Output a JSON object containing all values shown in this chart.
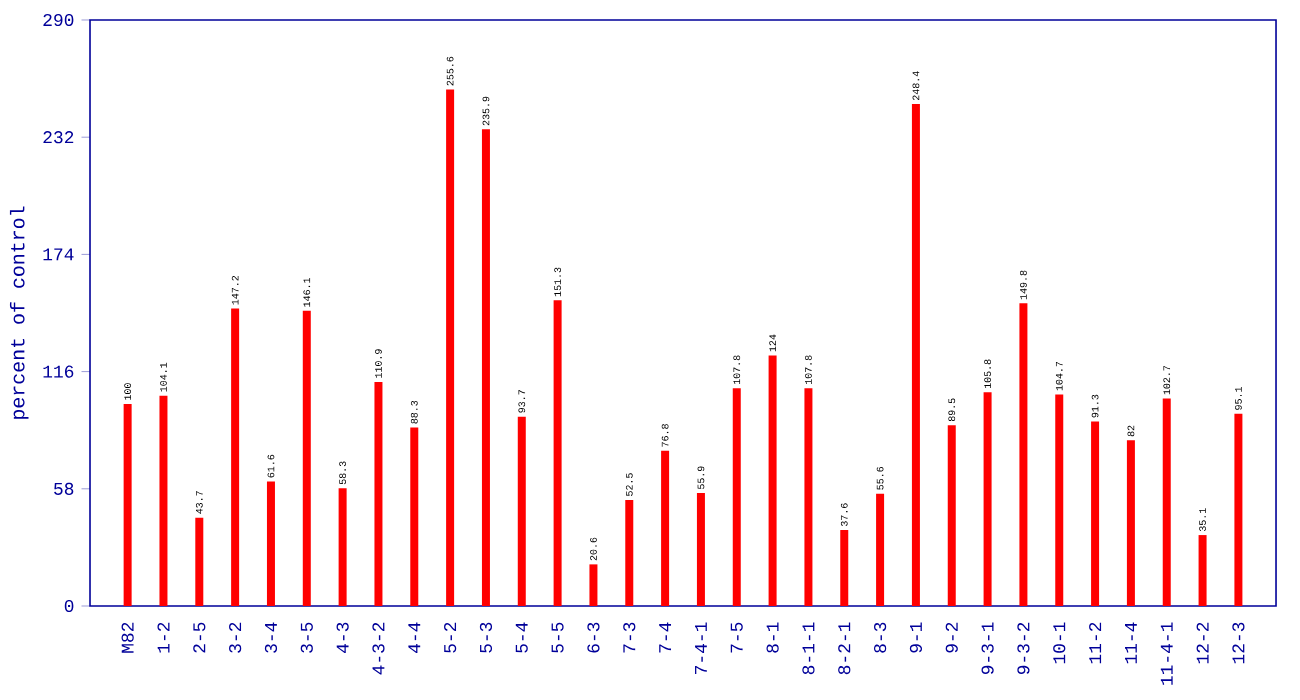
{
  "chart_data": {
    "type": "bar",
    "ylabel": "percent of control",
    "categories": [
      "M82",
      "1-2",
      "2-5",
      "3-2",
      "3-4",
      "3-5",
      "4-3",
      "4-3-2",
      "4-4",
      "5-2",
      "5-3",
      "5-4",
      "5-5",
      "6-3",
      "7-3",
      "7-4",
      "7-4-1",
      "7-5",
      "8-1",
      "8-1-1",
      "8-2-1",
      "8-3",
      "9-1",
      "9-2",
      "9-3-1",
      "9-3-2",
      "10-1",
      "11-2",
      "11-4",
      "11-4-1",
      "12-2",
      "12-3"
    ],
    "values": [
      100,
      104.1,
      43.7,
      147.2,
      61.6,
      146.1,
      58.3,
      110.9,
      88.3,
      255.6,
      235.9,
      93.7,
      151.3,
      20.6,
      52.5,
      76.8,
      55.9,
      107.8,
      124,
      107.8,
      37.6,
      55.6,
      248.4,
      89.5,
      105.8,
      149.8,
      104.7,
      91.3,
      82,
      102.7,
      35.1,
      95.1
    ],
    "color": "#ff0000",
    "ylim": [
      0,
      290
    ],
    "yticks": [
      0,
      58,
      116,
      174,
      232,
      290
    ],
    "data_labels": true
  }
}
